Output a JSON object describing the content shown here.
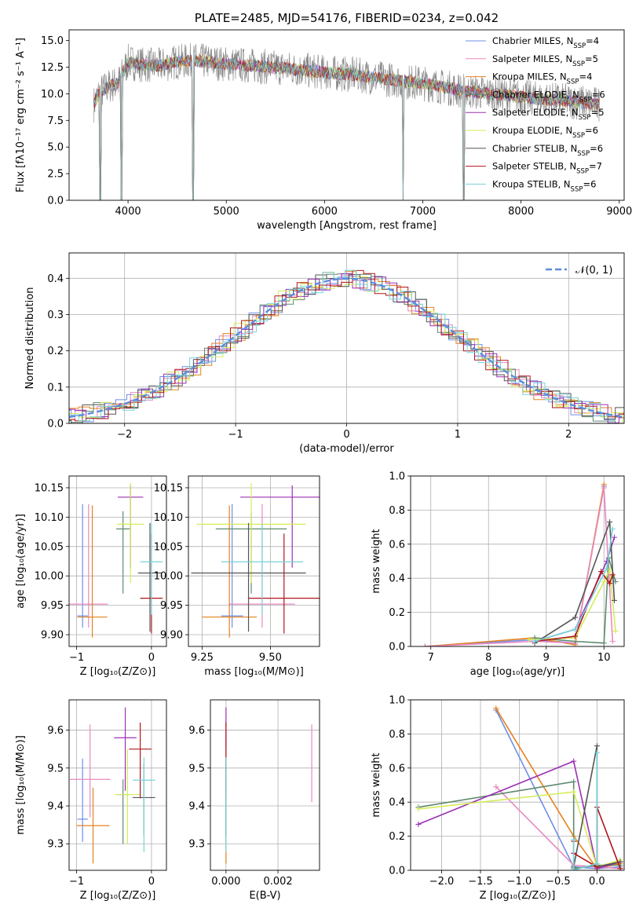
{
  "colors": {
    "chabrier_miles": "#6f8fe8",
    "salpeter_miles": "#e889c0",
    "kroupa_miles": "#e6821e",
    "chabrier_elodie": "#5f8a6e",
    "salpeter_elodie": "#9b30b5",
    "kroupa_elodie": "#d5ec5a",
    "chabrier_stelib": "#555555",
    "salpeter_stelib": "#b0161b",
    "kroupa_stelib": "#77d3d9",
    "normal": "#5b8ede",
    "grid": "#b0b0b0",
    "spectrum": "#808080"
  },
  "chart_data": [
    {
      "type": "line",
      "title": "PLATE=2485, MJD=54176, FIBERID=0234, z=0.042",
      "xlabel": "wavelength [Angstrom, rest frame]",
      "ylabel": "Flux [fλ10⁻¹⁷ erg cm⁻² s⁻¹ A⁻¹]",
      "xlim": [
        3400,
        9050
      ],
      "ylim": [
        0,
        16
      ],
      "xticks": [
        "4000",
        "5000",
        "6000",
        "7000",
        "8000",
        "9000"
      ],
      "yticks": [
        "0.0",
        "2.5",
        "5.0",
        "7.5",
        "10.0",
        "12.5",
        "15.0"
      ],
      "grid": false,
      "legend_position": "top-right",
      "legend": [
        {
          "label": "Chabrier MILES, N",
          "sub": "SSP",
          "tail": "=4",
          "color_key": "chabrier_miles"
        },
        {
          "label": "Salpeter MILES, N",
          "sub": "SSP",
          "tail": "=5",
          "color_key": "salpeter_miles"
        },
        {
          "label": "Kroupa MILES, N",
          "sub": "SSP",
          "tail": "=4",
          "color_key": "kroupa_miles"
        },
        {
          "label": "Chabrier ELODIE, N",
          "sub": "SSP",
          "tail": "=6",
          "color_key": "chabrier_elodie"
        },
        {
          "label": "Salpeter ELODIE, N",
          "sub": "SSP",
          "tail": "=5",
          "color_key": "salpeter_elodie"
        },
        {
          "label": "Kroupa ELODIE, N",
          "sub": "SSP",
          "tail": "=6",
          "color_key": "kroupa_elodie"
        },
        {
          "label": "Chabrier STELIB, N",
          "sub": "SSP",
          "tail": "=6",
          "color_key": "chabrier_stelib"
        },
        {
          "label": "Salpeter STELIB, N",
          "sub": "SSP",
          "tail": "=7",
          "color_key": "salpeter_stelib"
        },
        {
          "label": "Kroupa STELIB, N",
          "sub": "SSP",
          "tail": "=6",
          "color_key": "kroupa_stelib"
        }
      ],
      "spectrum_envelope": {
        "x": [
          3650,
          3700,
          3800,
          3900,
          4000,
          4100,
          4300,
          4500,
          4700,
          5000,
          5300,
          5600,
          6000,
          6300,
          6600,
          7000,
          7400,
          7800,
          8000,
          8200,
          8500,
          8800
        ],
        "y": [
          9.0,
          10.0,
          10.7,
          11.0,
          13.0,
          12.8,
          12.6,
          13.0,
          13.1,
          12.8,
          12.6,
          12.4,
          12.0,
          11.8,
          11.4,
          11.0,
          10.3,
          9.9,
          9.7,
          9.5,
          9.3,
          9.0
        ]
      },
      "spectrum_dips": [
        {
          "x": 3720,
          "y": 0.0
        },
        {
          "x": 3930,
          "y": 0.0
        },
        {
          "x": 4660,
          "y": 0.0
        },
        {
          "x": 6800,
          "y": 0.0
        },
        {
          "x": 7420,
          "y": 0.0
        }
      ]
    },
    {
      "type": "line",
      "xlabel": "(data-model)/error",
      "ylabel": "Normed distribution",
      "xlim": [
        -2.5,
        2.5
      ],
      "ylim": [
        0,
        0.47
      ],
      "xticks": [
        "−2",
        "−1",
        "0",
        "1",
        "2"
      ],
      "yticks": [
        "0.0",
        "0.1",
        "0.2",
        "0.3",
        "0.4"
      ],
      "grid": true,
      "legend_position": "top-right",
      "normal_label": "𝒩(0, 1)",
      "hist_bin_width": 0.1
    },
    {
      "type": "scatter",
      "xlabel": "Z [log₁₀(Z/Z⊙)]",
      "ylabel": "age  [log₁₀(age/yr)]",
      "xlim": [
        -1.1,
        0.2
      ],
      "ylim": [
        9.88,
        10.17
      ],
      "xticks": [
        "−1",
        "0"
      ],
      "yticks": [
        "9.90",
        "9.95",
        "10.00",
        "10.05",
        "10.10",
        "10.15"
      ],
      "grid": true,
      "points": [
        {
          "key": "chabrier_miles",
          "x": -0.92,
          "xerr": 0.07,
          "y": 9.932,
          "yerr": [
            0.02,
            0.19
          ]
        },
        {
          "key": "salpeter_miles",
          "x": -0.84,
          "xerr": 0.26,
          "y": 9.952,
          "yerr": [
            0.04,
            0.17
          ]
        },
        {
          "key": "kroupa_miles",
          "x": -0.79,
          "xerr": 0.2,
          "y": 9.93,
          "yerr": [
            0.035,
            0.19
          ]
        },
        {
          "key": "chabrier_elodie",
          "x": -0.38,
          "xerr": 0.09,
          "y": 10.08,
          "yerr": [
            0.11,
            0.03
          ]
        },
        {
          "key": "salpeter_elodie",
          "x": -0.28,
          "xerr": 0.17,
          "y": 10.134,
          "yerr": [
            0.12,
            0.02
          ]
        },
        {
          "key": "kroupa_elodie",
          "x": -0.28,
          "xerr": 0.18,
          "y": 10.088,
          "yerr": [
            0.1,
            0.07
          ]
        },
        {
          "key": "chabrier_stelib",
          "x": -0.02,
          "xerr": 0.16,
          "y": 10.005,
          "yerr": [
            0.1,
            0.085
          ]
        },
        {
          "key": "salpeter_stelib",
          "x": 0.0,
          "xerr": 0.15,
          "y": 9.962,
          "yerr": [
            0.06,
            0.11
          ]
        },
        {
          "key": "kroupa_stelib",
          "x": 0.0,
          "xerr": 0.15,
          "y": 10.024,
          "yerr": [
            0.09,
            0.065
          ]
        }
      ]
    },
    {
      "type": "scatter",
      "xlabel": "mass [log₁₀(M/M⊙)]",
      "xlim": [
        9.2,
        9.68
      ],
      "ylim": [
        9.88,
        10.17
      ],
      "xticks": [
        "9.25",
        "9.50"
      ],
      "yticks": [
        "9.90",
        "9.95",
        "10.00",
        "10.05",
        "10.10",
        "10.15"
      ],
      "grid": true,
      "points": [
        {
          "key": "chabrier_miles",
          "x": 9.36,
          "xerr": 0.04,
          "y": 9.932,
          "yerr": [
            0.02,
            0.19
          ]
        },
        {
          "key": "salpeter_miles",
          "x": 9.47,
          "xerr": 0.12,
          "y": 9.952,
          "yerr": [
            0.04,
            0.17
          ]
        },
        {
          "key": "kroupa_miles",
          "x": 9.35,
          "xerr": 0.1,
          "y": 9.93,
          "yerr": [
            0.035,
            0.19
          ]
        },
        {
          "key": "chabrier_elodie",
          "x": 9.43,
          "xerr": 0.13,
          "y": 10.08,
          "yerr": [
            0.11,
            0.03
          ]
        },
        {
          "key": "salpeter_elodie",
          "x": 9.58,
          "xerr": 0.19,
          "y": 10.134,
          "yerr": [
            0.12,
            0.02
          ]
        },
        {
          "key": "kroupa_elodie",
          "x": 9.43,
          "xerr": 0.2,
          "y": 10.088,
          "yerr": [
            0.1,
            0.07
          ]
        },
        {
          "key": "chabrier_stelib",
          "x": 9.42,
          "xerr": 0.21,
          "y": 10.005,
          "yerr": [
            0.1,
            0.085
          ]
        },
        {
          "key": "salpeter_stelib",
          "x": 9.55,
          "xerr": 0.13,
          "y": 9.962,
          "yerr": [
            0.06,
            0.11
          ]
        },
        {
          "key": "kroupa_stelib",
          "x": 9.47,
          "xerr": 0.15,
          "y": 10.024,
          "yerr": [
            0.09,
            0.065
          ]
        }
      ]
    },
    {
      "type": "line",
      "xlabel": "age  [log₁₀(age/yr)]",
      "ylabel": "mass weight",
      "xlim": [
        6.65,
        10.35
      ],
      "ylim": [
        0,
        1.0
      ],
      "xticks": [
        "7",
        "8",
        "9",
        "10"
      ],
      "yticks": [
        "0.0",
        "0.2",
        "0.4",
        "0.6",
        "0.8",
        "1.0"
      ],
      "grid": true,
      "series": [
        {
          "key": "chabrier_miles",
          "x": [
            6.9,
            8.8,
            9.5,
            10.0
          ],
          "y": [
            0.0,
            0.04,
            0.02,
            0.94
          ]
        },
        {
          "key": "kroupa_miles",
          "x": [
            6.9,
            8.8,
            9.5,
            10.0
          ],
          "y": [
            0.0,
            0.05,
            0.01,
            0.95
          ]
        },
        {
          "key": "salpeter_miles",
          "x": [
            6.9,
            8.8,
            9.5,
            10.0,
            10.15
          ],
          "y": [
            0.0,
            0.03,
            0.02,
            0.93,
            0.03
          ]
        },
        {
          "key": "chabrier_elodie",
          "x": [
            8.8,
            9.5,
            10.0,
            10.08,
            10.2
          ],
          "y": [
            0.05,
            0.03,
            0.02,
            0.52,
            0.38
          ]
        },
        {
          "key": "salpeter_elodie",
          "x": [
            8.8,
            9.5,
            10.05,
            10.18
          ],
          "y": [
            0.03,
            0.1,
            0.5,
            0.64
          ]
        },
        {
          "key": "kroupa_elodie",
          "x": [
            8.7,
            9.5,
            10.0,
            10.1,
            10.2
          ],
          "y": [
            0.04,
            0.05,
            0.38,
            0.45,
            0.09
          ]
        },
        {
          "key": "chabrier_stelib",
          "x": [
            8.8,
            9.5,
            10.1,
            10.18
          ],
          "y": [
            0.02,
            0.17,
            0.73,
            0.27
          ]
        },
        {
          "key": "salpeter_stelib",
          "x": [
            8.8,
            9.5,
            9.95,
            10.1,
            10.15
          ],
          "y": [
            0.03,
            0.06,
            0.44,
            0.37,
            0.42
          ]
        },
        {
          "key": "kroupa_stelib",
          "x": [
            8.8,
            9.5,
            10.05,
            10.15
          ],
          "y": [
            0.03,
            0.1,
            0.46,
            0.69
          ]
        }
      ]
    },
    {
      "type": "scatter",
      "xlabel": "Z [log₁₀(Z/Z⊙)]",
      "ylabel": "mass [log₁₀(M/M⊙)]",
      "xlim": [
        -1.1,
        0.2
      ],
      "ylim": [
        9.23,
        9.68
      ],
      "xticks": [
        "−1",
        "0"
      ],
      "yticks": [
        "9.3",
        "9.4",
        "9.5",
        "9.6"
      ],
      "grid": true,
      "points": [
        {
          "key": "chabrier_miles",
          "x": -0.92,
          "xerr": 0.07,
          "y": 9.365,
          "yerr": [
            0.06,
            0.16
          ]
        },
        {
          "key": "salpeter_miles",
          "x": -0.82,
          "xerr": 0.27,
          "y": 9.47,
          "yerr": [
            0.1,
            0.145
          ]
        },
        {
          "key": "kroupa_miles",
          "x": -0.78,
          "xerr": 0.22,
          "y": 9.348,
          "yerr": [
            0.1,
            0.1
          ]
        },
        {
          "key": "chabrier_elodie",
          "x": -0.38,
          "xerr": 0.08,
          "y": 9.43,
          "yerr": [
            0.13,
            0.04
          ]
        },
        {
          "key": "salpeter_elodie",
          "x": -0.35,
          "xerr": 0.15,
          "y": 9.58,
          "yerr": [
            0.14,
            0.08
          ]
        },
        {
          "key": "kroupa_elodie",
          "x": -0.32,
          "xerr": 0.17,
          "y": 9.43,
          "yerr": [
            0.13,
            0.12
          ]
        },
        {
          "key": "chabrier_stelib",
          "x": -0.1,
          "xerr": 0.15,
          "y": 9.422,
          "yerr": [
            0.1,
            0.09
          ]
        },
        {
          "key": "salpeter_stelib",
          "x": -0.15,
          "xerr": 0.15,
          "y": 9.55,
          "yerr": [
            0.13,
            0.07
          ]
        },
        {
          "key": "kroupa_stelib",
          "x": -0.1,
          "xerr": 0.15,
          "y": 9.468,
          "yerr": [
            0.19,
            0.06
          ]
        }
      ]
    },
    {
      "type": "scatter",
      "xlabel": "E(B-V)",
      "xlim": [
        -0.0006,
        0.0036
      ],
      "ylim": [
        9.23,
        9.68
      ],
      "xticks": [
        "0.000",
        "0.002"
      ],
      "yticks": [
        "9.3",
        "9.4",
        "9.5",
        "9.6"
      ],
      "grid": true,
      "points": [
        {
          "key": "chabrier_miles",
          "x": 0.0,
          "y": 9.365,
          "yerr": [
            0.06,
            0.16
          ]
        },
        {
          "key": "kroupa_miles",
          "x": 0.0,
          "y": 9.348,
          "yerr": [
            0.1,
            0.1
          ]
        },
        {
          "key": "chabrier_elodie",
          "x": 0.0,
          "y": 9.43,
          "yerr": [
            0.13,
            0.04
          ]
        },
        {
          "key": "salpeter_elodie",
          "x": 0.0,
          "y": 9.58,
          "yerr": [
            0.14,
            0.08
          ]
        },
        {
          "key": "kroupa_elodie",
          "x": 0.0,
          "y": 9.43,
          "yerr": [
            0.13,
            0.12
          ]
        },
        {
          "key": "chabrier_stelib",
          "x": 0.0,
          "y": 9.422,
          "yerr": [
            0.1,
            0.09
          ]
        },
        {
          "key": "salpeter_stelib",
          "x": 0.0,
          "y": 9.55,
          "yerr": [
            0.13,
            0.07
          ]
        },
        {
          "key": "kroupa_stelib",
          "x": 0.0,
          "y": 9.468,
          "yerr": [
            0.19,
            0.06
          ]
        },
        {
          "key": "salpeter_miles",
          "x": 0.0033,
          "y": 9.5,
          "yerr": [
            0.09,
            0.115
          ]
        }
      ]
    },
    {
      "type": "line",
      "xlabel": "Z [log₁₀(Z/Z⊙)]",
      "ylabel": "mass weight",
      "xlim": [
        -2.4,
        0.35
      ],
      "ylim": [
        0,
        1.0
      ],
      "xticks": [
        "−2.0",
        "−1.5",
        "−1.0",
        "−0.5",
        "0.0"
      ],
      "yticks": [
        "0.0",
        "0.2",
        "0.4",
        "0.6",
        "0.8",
        "1.0"
      ],
      "grid": true,
      "series": [
        {
          "key": "chabrier_miles",
          "x": [
            -1.3,
            -0.3,
            0.0,
            0.3
          ],
          "y": [
            0.94,
            0.02,
            0.01,
            0.02
          ]
        },
        {
          "key": "kroupa_miles",
          "x": [
            -1.3,
            -0.3,
            0.0,
            0.3
          ],
          "y": [
            0.95,
            0.2,
            0.01,
            0.04
          ]
        },
        {
          "key": "salpeter_miles",
          "x": [
            -1.3,
            -0.3,
            0.0,
            0.3
          ],
          "y": [
            0.49,
            0.03,
            0.02,
            0.01
          ]
        },
        {
          "key": "chabrier_elodie",
          "x": [
            -2.3,
            -0.3,
            -0.3,
            0.0,
            0.3
          ],
          "y": [
            0.37,
            0.52,
            0.01,
            0.03,
            0.03
          ]
        },
        {
          "key": "salpeter_elodie",
          "x": [
            -2.3,
            -0.3,
            0.0,
            0.3
          ],
          "y": [
            0.27,
            0.64,
            0.01,
            0.05
          ]
        },
        {
          "key": "kroupa_elodie",
          "x": [
            -2.3,
            -0.3,
            0.0,
            0.3
          ],
          "y": [
            0.36,
            0.46,
            0.02,
            0.06
          ]
        },
        {
          "key": "chabrier_stelib",
          "x": [
            -0.3,
            0.0,
            0.0,
            0.3
          ],
          "y": [
            0.02,
            0.73,
            0.02,
            0.05
          ]
        },
        {
          "key": "salpeter_stelib",
          "x": [
            -0.3,
            -0.3,
            0.0,
            0.0,
            0.3
          ],
          "y": [
            0.17,
            0.1,
            0.02,
            0.37,
            0.01
          ]
        },
        {
          "key": "kroupa_stelib",
          "x": [
            -0.3,
            -0.3,
            0.0,
            0.0
          ],
          "y": [
            0.18,
            0.0,
            0.04,
            0.69
          ]
        }
      ]
    }
  ]
}
